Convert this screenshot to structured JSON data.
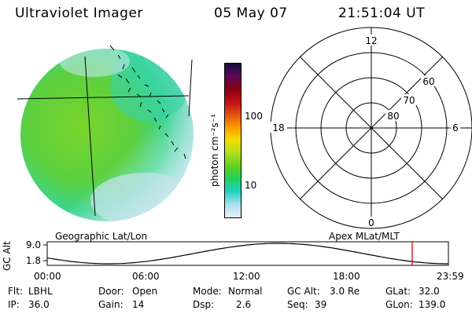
{
  "header": {
    "instrument": "Ultraviolet Imager",
    "date": "05 May 07",
    "time": "21:51:04 UT"
  },
  "colorbar": {
    "unit_label": "photon cm⁻²s⁻¹",
    "ticks": [
      "100",
      "10"
    ],
    "colors": [
      "#1a0a3a",
      "#5a0a5a",
      "#8a0010",
      "#c0101a",
      "#e05010",
      "#ffa000",
      "#f0e000",
      "#b0e020",
      "#60d020",
      "#20d060",
      "#20d0c0",
      "#b0e0f0",
      "#e8f0f8"
    ]
  },
  "polar_plot": {
    "mlt_labels": {
      "top": "12",
      "left": "18",
      "right": "6",
      "bottom": "0"
    },
    "lat_labels": [
      "60",
      "70",
      "80"
    ]
  },
  "image_labels": {
    "left": "Geographic Lat/Lon",
    "right": "Apex MLat/MLT"
  },
  "orbit_plot": {
    "ylabel": "GC Alt",
    "yticks": [
      "9.0",
      "1.8"
    ],
    "xticks": [
      "00:00",
      "06:00",
      "12:00",
      "18:00",
      "23:59"
    ],
    "marker_color": "#e00000"
  },
  "info": {
    "flt_label": "Flt:",
    "flt_value": "LBHL",
    "ip_label": "IP:",
    "ip_value": "36.0",
    "door_label": "Door:",
    "door_value": "Open",
    "gain_label": "Gain:",
    "gain_value": "14",
    "mode_label": "Mode:",
    "mode_value": "Normal",
    "dsp_label": "Dsp:",
    "dsp_value": "2.6",
    "gcalt_label": "GC Alt:",
    "gcalt_value": "3.0 Re",
    "seq_label": "Seq:",
    "seq_value": "39",
    "glat_label": "GLat:",
    "glat_value": "32.0",
    "glon_label": "GLon:",
    "glon_value": "139.0"
  }
}
